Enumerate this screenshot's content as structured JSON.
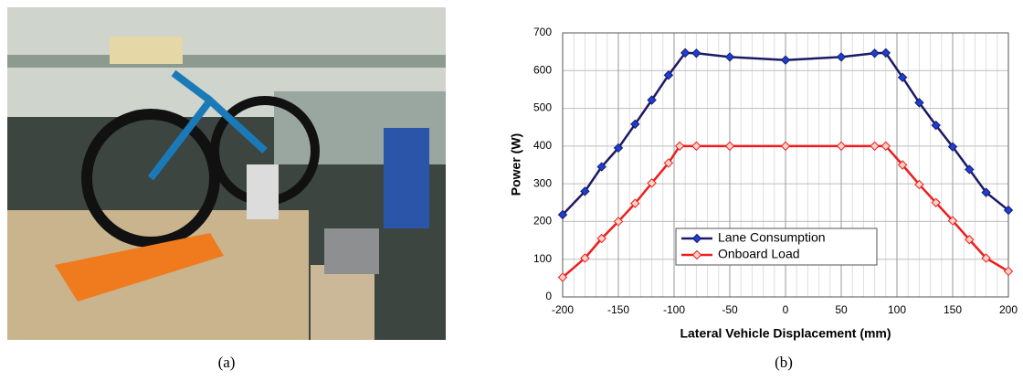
{
  "captions": [
    "(a)",
    "(b)"
  ],
  "chart_data": {
    "type": "line",
    "xlabel": "Lateral Vehicle Displacement (mm)",
    "ylabel": "Power (W)",
    "xlim": [
      -200,
      200
    ],
    "xticks": [
      -200,
      -150,
      -100,
      -50,
      0,
      50,
      100,
      150,
      200
    ],
    "ylim": [
      0,
      700
    ],
    "yticks": [
      0,
      100,
      200,
      300,
      400,
      500,
      600,
      700
    ],
    "grid": true,
    "legend": "lower center",
    "series": [
      {
        "name": "Lane Consumption",
        "color": "#1c1a66",
        "marker_color": "#1a3fd6",
        "x": [
          -200,
          -180,
          -165,
          -150,
          -135,
          -120,
          -105,
          -90,
          -80,
          -50,
          0,
          50,
          80,
          90,
          105,
          120,
          135,
          150,
          165,
          180,
          200
        ],
        "values": [
          218,
          280,
          345,
          395,
          458,
          522,
          588,
          647,
          646,
          636,
          628,
          636,
          646,
          647,
          582,
          515,
          455,
          398,
          338,
          277,
          230
        ]
      },
      {
        "name": "Onboard Load",
        "color": "#ee1c1c",
        "marker_color": "#fbd2c8",
        "x": [
          -200,
          -180,
          -165,
          -150,
          -135,
          -120,
          -105,
          -95,
          -80,
          -50,
          0,
          50,
          80,
          90,
          105,
          120,
          135,
          150,
          165,
          180,
          200
        ],
        "values": [
          52,
          103,
          155,
          200,
          248,
          302,
          355,
          400,
          400,
          400,
          400,
          400,
          400,
          400,
          350,
          298,
          250,
          202,
          152,
          103,
          68
        ]
      }
    ]
  }
}
